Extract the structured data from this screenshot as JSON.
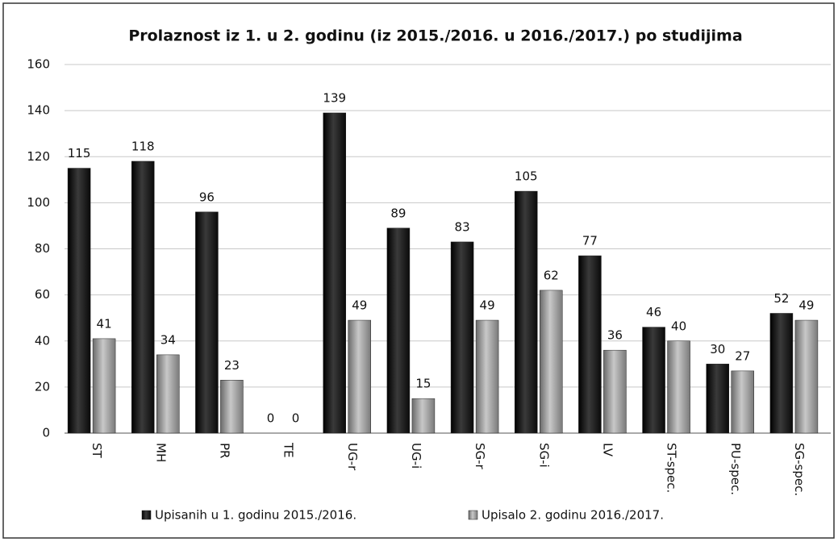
{
  "chart_data": {
    "type": "bar",
    "title": "Prolaznost iz 1. u 2. godinu  (iz 2015./2016.  u  2016./2017.) po studijima",
    "categories": [
      "ST",
      "MH",
      "PR",
      "TE",
      "UG-r",
      "UG-i",
      "SG-r",
      "SG-i",
      "LV",
      "ST-spec.",
      "PU-spec.",
      "SG-spec."
    ],
    "series": [
      {
        "name": "Upisanih u 1. godinu 2015./2016.",
        "color": "#1c1c1c",
        "values": [
          115,
          118,
          96,
          0,
          139,
          89,
          83,
          105,
          77,
          46,
          30,
          52
        ]
      },
      {
        "name": "Upisalo 2. godinu 2016./2017.",
        "color": "#9a9a9a",
        "values": [
          41,
          34,
          23,
          0,
          49,
          15,
          49,
          62,
          36,
          40,
          27,
          49
        ]
      }
    ],
    "ylim": [
      0,
      160
    ],
    "yticks": [
      0,
      20,
      40,
      60,
      80,
      100,
      120,
      140,
      160
    ],
    "grid": true,
    "legend": "bottom"
  }
}
